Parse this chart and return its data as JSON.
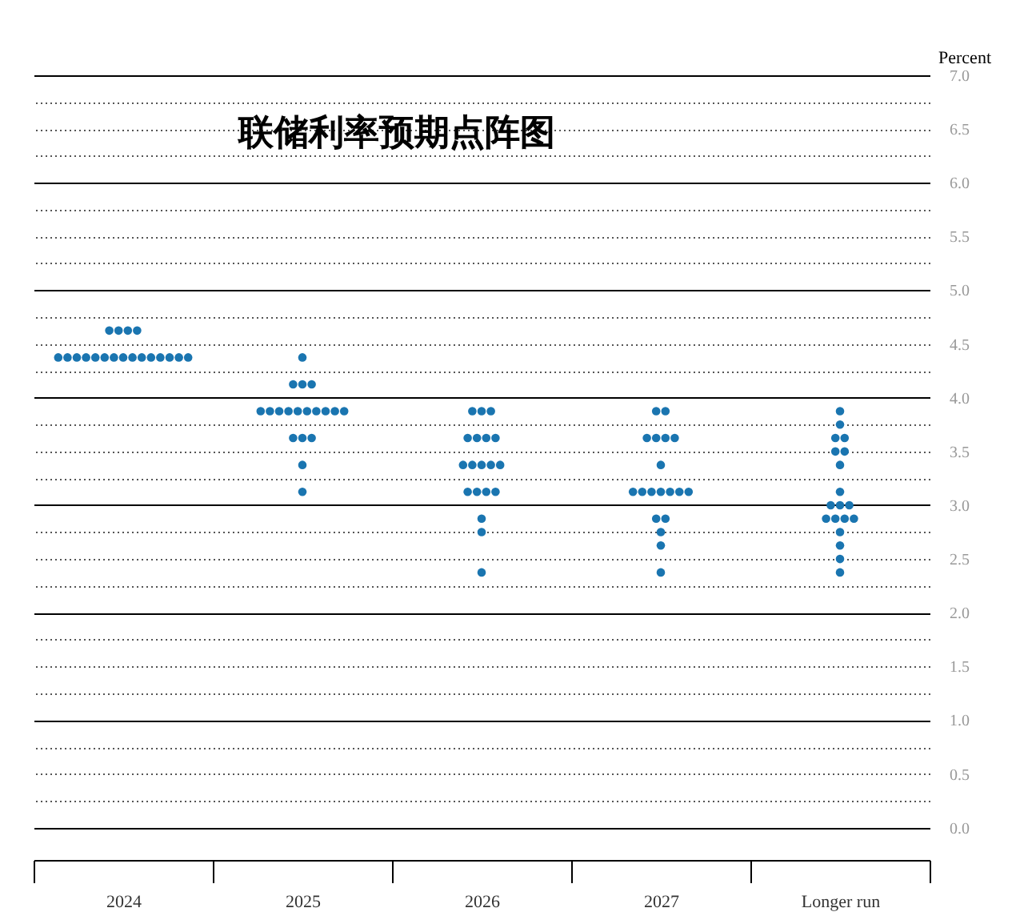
{
  "chart_data": {
    "type": "scatter",
    "title": "联储利率预期点阵图",
    "ylabel": "Percent",
    "categories": [
      "2024",
      "2025",
      "2026",
      "2027",
      "Longer run"
    ],
    "series": [
      {
        "color": "#1a75b0",
        "values": [
          4.625,
          4.375,
          3.875,
          3.875,
          3.875
        ]
      },
      {
        "color": "#1a75b0",
        "values": [
          4.625,
          4.125,
          3.875,
          3.875,
          3.75
        ]
      },
      {
        "color": "#1a75b0",
        "values": [
          4.625,
          4.125,
          3.875,
          3.625,
          3.625
        ]
      },
      {
        "color": "#1a75b0",
        "values": [
          4.625,
          4.125,
          3.625,
          3.625,
          3.625
        ]
      },
      {
        "color": "#1a75b0",
        "values": [
          4.375,
          3.875,
          3.625,
          3.625,
          3.5
        ]
      },
      {
        "color": "#1a75b0",
        "values": [
          4.375,
          3.875,
          3.625,
          3.625,
          3.5
        ]
      },
      {
        "color": "#1a75b0",
        "values": [
          4.375,
          3.875,
          3.625,
          3.375,
          3.375
        ]
      },
      {
        "color": "#1a75b0",
        "values": [
          4.375,
          3.875,
          3.375,
          3.125,
          3.125
        ]
      },
      {
        "color": "#1a75b0",
        "values": [
          4.375,
          3.875,
          3.375,
          3.125,
          3.0
        ]
      },
      {
        "color": "#1a75b0",
        "values": [
          4.375,
          3.875,
          3.375,
          3.125,
          3.0
        ]
      },
      {
        "color": "#1a75b0",
        "values": [
          4.375,
          3.875,
          3.375,
          3.125,
          3.0
        ]
      },
      {
        "color": "#1a75b0",
        "values": [
          4.375,
          3.875,
          3.375,
          3.125,
          2.875
        ]
      },
      {
        "color": "#1a75b0",
        "values": [
          4.375,
          3.875,
          3.125,
          3.125,
          2.875
        ]
      },
      {
        "color": "#1a75b0",
        "values": [
          4.375,
          3.875,
          3.125,
          3.125,
          2.875
        ]
      },
      {
        "color": "#1a75b0",
        "values": [
          4.375,
          3.625,
          3.125,
          2.875,
          2.875
        ]
      },
      {
        "color": "#1a75b0",
        "values": [
          4.375,
          3.625,
          3.125,
          2.875,
          2.75
        ]
      },
      {
        "color": "#1a75b0",
        "values": [
          4.375,
          3.625,
          2.875,
          2.75,
          2.625
        ]
      },
      {
        "color": "#1a75b0",
        "values": [
          4.375,
          3.375,
          2.75,
          2.625,
          2.5
        ]
      },
      {
        "color": "#1a75b0",
        "values": [
          4.375,
          3.125,
          2.375,
          2.375,
          2.375
        ]
      }
    ],
    "ylim": [
      -0.3,
      7.0
    ],
    "yticks": [
      {
        "value": 0,
        "label": "0.0"
      },
      {
        "value": 0.25,
        "label": null
      },
      {
        "value": 0.5,
        "label": "0.5"
      },
      {
        "value": 0.75,
        "label": null
      },
      {
        "value": 1,
        "label": "1.0"
      },
      {
        "value": 1.25,
        "label": null
      },
      {
        "value": 1.5,
        "label": "1.5"
      },
      {
        "value": 1.75,
        "label": null
      },
      {
        "value": 2,
        "label": "2.0"
      },
      {
        "value": 2.25,
        "label": null
      },
      {
        "value": 2.5,
        "label": "2.5"
      },
      {
        "value": 2.75,
        "label": null
      },
      {
        "value": 3,
        "label": "3.0"
      },
      {
        "value": 3.25,
        "label": null
      },
      {
        "value": 3.5,
        "label": "3.5"
      },
      {
        "value": 3.75,
        "label": null
      },
      {
        "value": 4,
        "label": "4.0"
      },
      {
        "value": 4.25,
        "label": null
      },
      {
        "value": 4.5,
        "label": "4.5"
      },
      {
        "value": 4.75,
        "label": null
      },
      {
        "value": 5,
        "label": "5.0"
      },
      {
        "value": 5.25,
        "label": null
      },
      {
        "value": 5.5,
        "label": "5.5"
      },
      {
        "value": 5.75,
        "label": null
      },
      {
        "value": 6,
        "label": "6.0"
      },
      {
        "value": 6.25,
        "label": null
      },
      {
        "value": 6.5,
        "label": "6.5"
      },
      {
        "value": 6.75,
        "label": null
      },
      {
        "value": 7,
        "label": "7.0"
      }
    ],
    "grid": "y",
    "marker": "circle"
  }
}
